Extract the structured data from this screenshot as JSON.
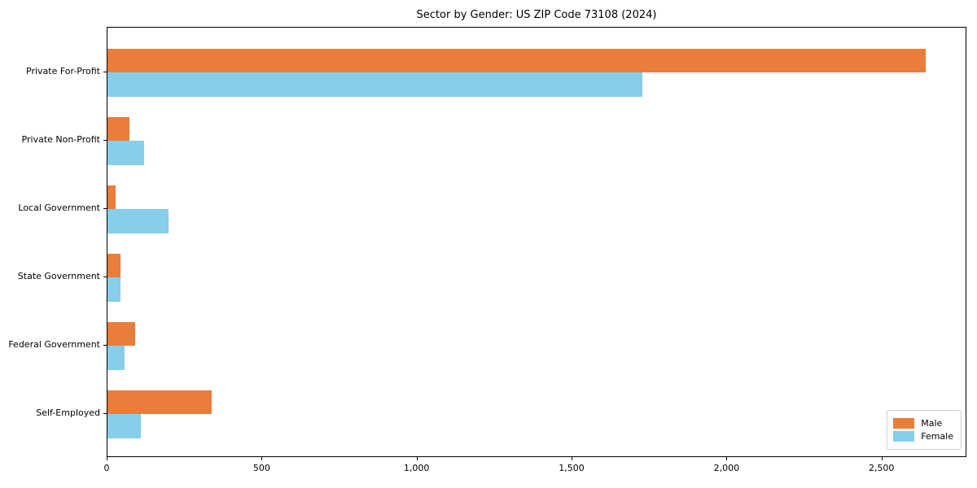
{
  "title": "Sector by Gender: US ZIP Code 73108 (2024)",
  "colors": {
    "male": "#E87D3C",
    "female": "#87CEEB",
    "axis": "#000000",
    "legend_border": "#CCCCCC",
    "background": "#FFFFFF"
  },
  "legend": {
    "position": "lower right",
    "items": [
      {
        "label": "Male",
        "color": "#E87D3C"
      },
      {
        "label": "Female",
        "color": "#87CEEB"
      }
    ]
  },
  "chart_data": {
    "type": "bar",
    "orientation": "horizontal",
    "title": "Sector by Gender: US ZIP Code 73108 (2024)",
    "categories": [
      "Private For-Profit",
      "Private Non-Profit",
      "Local Government",
      "State Government",
      "Federal Government",
      "Self-Employed"
    ],
    "series": [
      {
        "name": "Male",
        "color": "#E87D3C",
        "values": [
          2640,
          70,
          26,
          42,
          89,
          337
        ]
      },
      {
        "name": "Female",
        "color": "#87CEEB",
        "values": [
          1725,
          118,
          197,
          41,
          56,
          108
        ]
      }
    ],
    "xlabel": "",
    "ylabel": "",
    "xlim": [
      0,
      2774
    ],
    "xticks": [
      0,
      500,
      1000,
      1500,
      2000,
      2500
    ],
    "xtick_labels": [
      "0",
      "500",
      "1,000",
      "1,500",
      "2,000",
      "2,500"
    ],
    "grid": false,
    "legend_position": "lower right"
  }
}
